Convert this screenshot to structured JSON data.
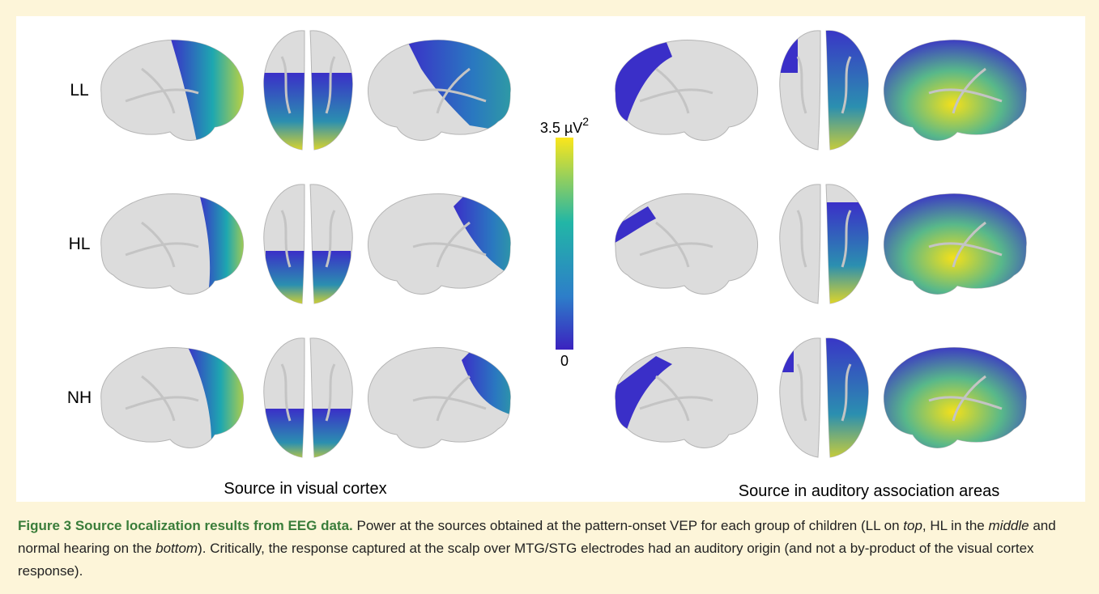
{
  "figure": {
    "row_labels": [
      "LL",
      "HL",
      "NH"
    ],
    "colorbar": {
      "max_label": "3.5 µV",
      "max_label_sup": "2",
      "min_label": "0"
    },
    "panel_titles": [
      "Source in visual cortex",
      "Source in auditory association areas"
    ]
  },
  "caption": {
    "title": "Figure 3 Source localization results from EEG data.",
    "segments": [
      " Power at the sources obtained at the pattern-onset VEP for each group of children (LL on ",
      "top",
      ", HL in the ",
      "middle",
      " and normal hearing on the ",
      "bottom",
      "). Critically, the response captured at the scalp over MTG/STG electrodes had an auditory origin (and not a by-product of the visual cortex response)."
    ]
  }
}
